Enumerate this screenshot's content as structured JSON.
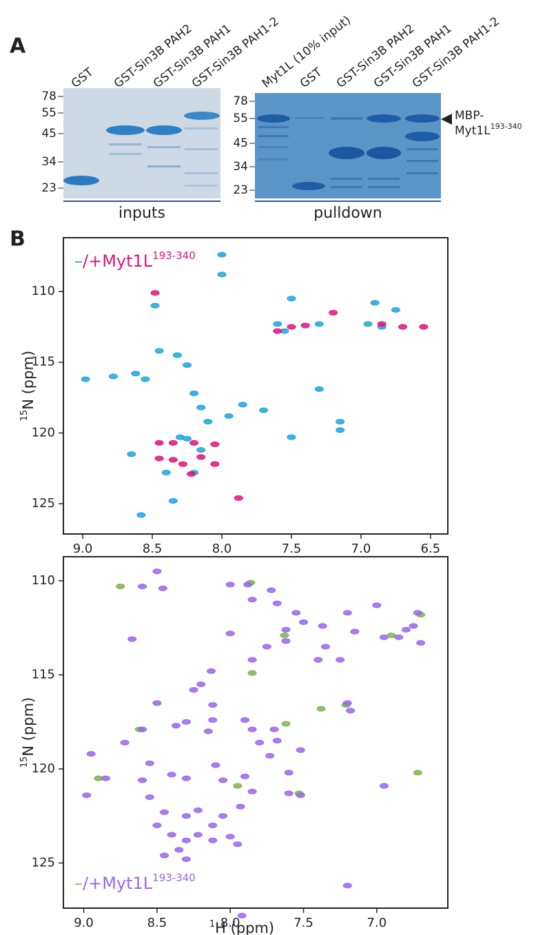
{
  "panel_a": {
    "label": "A",
    "gels": [
      {
        "lanes": [
          "GST",
          "GST-Sin3B PAH2",
          "GST-Sin3B PAH1",
          "GST-Sin3B PAH1-2"
        ],
        "markers": [
          78,
          55,
          45,
          34,
          23
        ],
        "group_label": "inputs"
      },
      {
        "lanes": [
          "Myt1L (10% input)",
          "GST",
          "GST-Sin3B PAH2",
          "GST-Sin3B PAH1",
          "GST-Sin3B PAH1-2"
        ],
        "markers": [
          78,
          55,
          45,
          34,
          23
        ],
        "group_label": "pulldown"
      }
    ],
    "annotation": {
      "line1": "MBP-",
      "line2": "Myt1L",
      "sup": "193-340"
    }
  },
  "panel_b_label": "B",
  "chart_data": [
    {
      "type": "scatter",
      "legend": {
        "minus": "–",
        "plus": "/+Myt1L",
        "sup": "193-340"
      },
      "y_label": {
        "sup": "15",
        "text": "N (ppm)"
      },
      "xlim": [
        9.139,
        6.376
      ],
      "ylim": [
        106.2,
        127.14
      ],
      "xticks": [
        {
          "value": 9,
          "label": "9.0"
        },
        8.5,
        {
          "value": 8,
          "label": "8.0"
        },
        7.5,
        {
          "value": 7,
          "label": "7.0"
        },
        6.5
      ],
      "yticks": [
        110,
        115,
        120,
        125
      ],
      "series": [
        {
          "color": "#1ea4dc",
          "x": [
            8.98,
            8.78,
            8.65,
            8.62,
            8.55,
            8.58,
            8.48,
            8.45,
            8.32,
            8.25,
            8.2,
            8.15,
            8.0,
            8.0,
            7.95,
            8.3,
            8.4,
            8.2,
            8.35,
            7.85,
            7.7,
            7.5,
            7.3,
            7.15,
            7.15,
            7.5,
            7.6,
            7.3,
            6.9,
            6.75,
            6.95,
            8.1,
            7.55,
            6.85,
            8.25,
            8.15
          ],
          "values": [
            116.2,
            116,
            121.5,
            115.8,
            116.2,
            125.8,
            111,
            114.2,
            114.5,
            115.2,
            117.2,
            118.2,
            108.8,
            107.4,
            118.8,
            120.3,
            122.8,
            122.8,
            124.8,
            118,
            118.4,
            120.3,
            116.9,
            119.2,
            119.8,
            110.5,
            112.3,
            112.3,
            110.8,
            111.3,
            112.3,
            119.2,
            112.8,
            112.5,
            120.4,
            121.2
          ]
        },
        {
          "color": "#e0147a",
          "x": [
            8.48,
            8.45,
            8.35,
            8.2,
            8.05,
            8.45,
            8.35,
            8.15,
            8.05,
            8.28,
            7.88,
            7.6,
            7.5,
            7.4,
            7.2,
            6.85,
            6.7,
            6.55,
            8.22
          ],
          "values": [
            110.1,
            120.7,
            120.7,
            120.7,
            120.8,
            121.8,
            121.9,
            121.7,
            122.2,
            122.2,
            124.6,
            112.8,
            112.5,
            112.4,
            111.5,
            112.3,
            112.5,
            112.5,
            122.9
          ]
        }
      ]
    },
    {
      "type": "scatter",
      "legend": {
        "minus": "–",
        "plus": "/+Myt1L",
        "sup": "193-340"
      },
      "y_label": {
        "sup": "15",
        "text": "N (ppm)"
      },
      "x_label": {
        "sup": "1",
        "text": "H (ppm)"
      },
      "xlim": [
        9.139,
        6.515
      ],
      "ylim": [
        108.72,
        127.4
      ],
      "xticks": [
        {
          "value": 9,
          "label": "9.0"
        },
        8.5,
        {
          "value": 8,
          "label": "8.0"
        },
        7.5,
        {
          "value": 7,
          "label": "7.0"
        }
      ],
      "yticks": [
        110,
        115,
        120,
        125
      ],
      "series": [
        {
          "color": "#7ab648",
          "x": [
            7.63,
            7.38,
            6.72,
            7.85,
            7.62,
            6.9,
            7.95,
            8.62,
            7.21,
            8.75,
            7.53,
            8.9,
            7.86,
            6.7
          ],
          "values": [
            112.9,
            116.8,
            120.2,
            114.9,
            117.6,
            112.9,
            120.9,
            117.9,
            116.6,
            110.3,
            121.3,
            120.5,
            110.1,
            111.8
          ]
        },
        {
          "color": "#9966ee",
          "x": [
            8.5,
            8.6,
            8.46,
            8.0,
            7.88,
            7.85,
            7.72,
            7.68,
            7.55,
            7.5,
            7.62,
            7.62,
            7.37,
            7.2,
            7.15,
            7.35,
            7.4,
            7.25,
            8.0,
            7.75,
            8.67,
            8.13,
            8.2,
            8.25,
            8.12,
            8.12,
            8.5,
            8.6,
            8.37,
            8.3,
            8.15,
            7.85,
            7.9,
            7.7,
            7.8,
            7.52,
            7.2,
            7.18,
            8.95,
            8.72,
            8.55,
            8.6,
            8.4,
            8.3,
            8.1,
            8.05,
            7.9,
            7.85,
            7.6,
            7.6,
            7.52,
            8.98,
            8.85,
            8.55,
            8.45,
            8.3,
            8.22,
            8.12,
            8.05,
            7.93,
            8.5,
            8.4,
            8.3,
            8.22,
            8.12,
            8.0,
            7.95,
            8.35,
            8.45,
            8.3,
            7.2,
            7.92,
            6.95,
            6.95,
            6.85,
            6.8,
            6.75,
            6.72,
            6.7,
            7.0,
            7.85,
            7.68,
            7.73
          ],
          "values": [
            109.5,
            110.3,
            110.4,
            110.2,
            110.2,
            111,
            110.5,
            111.2,
            111.7,
            112.2,
            112.6,
            113.2,
            112.4,
            111.7,
            112.7,
            113.5,
            114.2,
            114.2,
            112.8,
            113.5,
            113.1,
            114.8,
            115.5,
            115.8,
            116.6,
            117.4,
            116.5,
            117.9,
            117.7,
            117.5,
            118,
            117.9,
            117.4,
            117.9,
            118.6,
            119,
            116.5,
            116.9,
            119.2,
            118.6,
            119.7,
            120.6,
            120.3,
            120.5,
            119.8,
            120.6,
            120.4,
            121.2,
            120.2,
            121.3,
            121.4,
            121.4,
            120.5,
            121.5,
            122.3,
            122.5,
            122.2,
            123,
            122.5,
            122,
            123,
            123.5,
            123.8,
            123.5,
            123.8,
            123.6,
            124,
            124.3,
            124.6,
            124.8,
            126.2,
            127.8,
            120.9,
            113,
            113,
            112.6,
            112.4,
            111.7,
            113.3,
            111.3,
            114.2,
            118.5,
            119.3
          ]
        }
      ]
    }
  ]
}
